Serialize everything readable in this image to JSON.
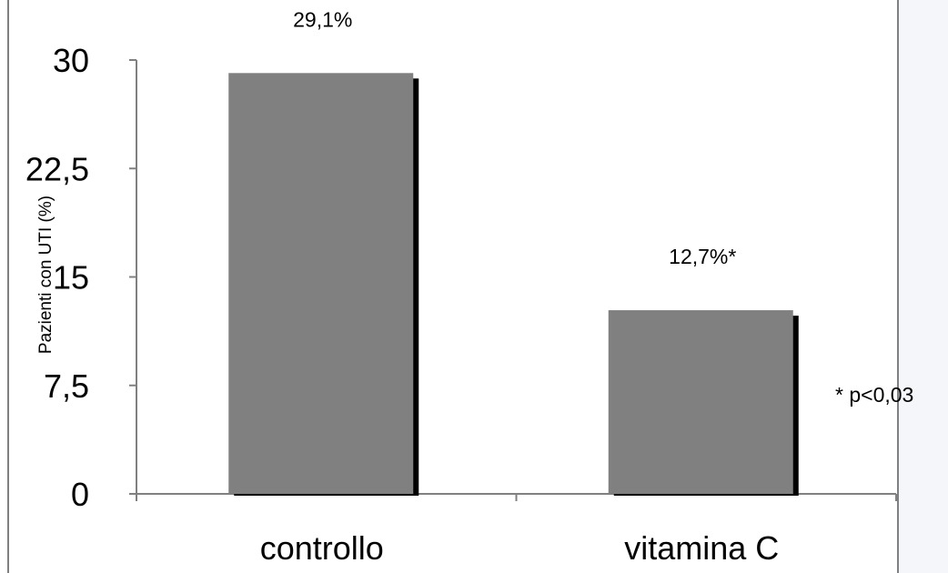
{
  "chart_data": {
    "type": "bar",
    "categories": [
      "controllo",
      "vitamina C"
    ],
    "values": [
      29.1,
      12.7
    ],
    "data_labels": [
      "29,1%",
      "12,7%*"
    ],
    "ylabel": "Pazienti con UTI (%)",
    "yticks": [
      "0",
      "7,5",
      "15",
      "22,5",
      "30"
    ],
    "ytick_values": [
      0,
      7.5,
      15,
      22.5,
      30
    ],
    "ylim": [
      0,
      30
    ],
    "grid": false,
    "legend": "none",
    "annotation": "* p<0,03",
    "colors": {
      "bar": "#808080",
      "bar_shadow": "#000000",
      "axis": "#808080",
      "frame": "#808080"
    }
  }
}
